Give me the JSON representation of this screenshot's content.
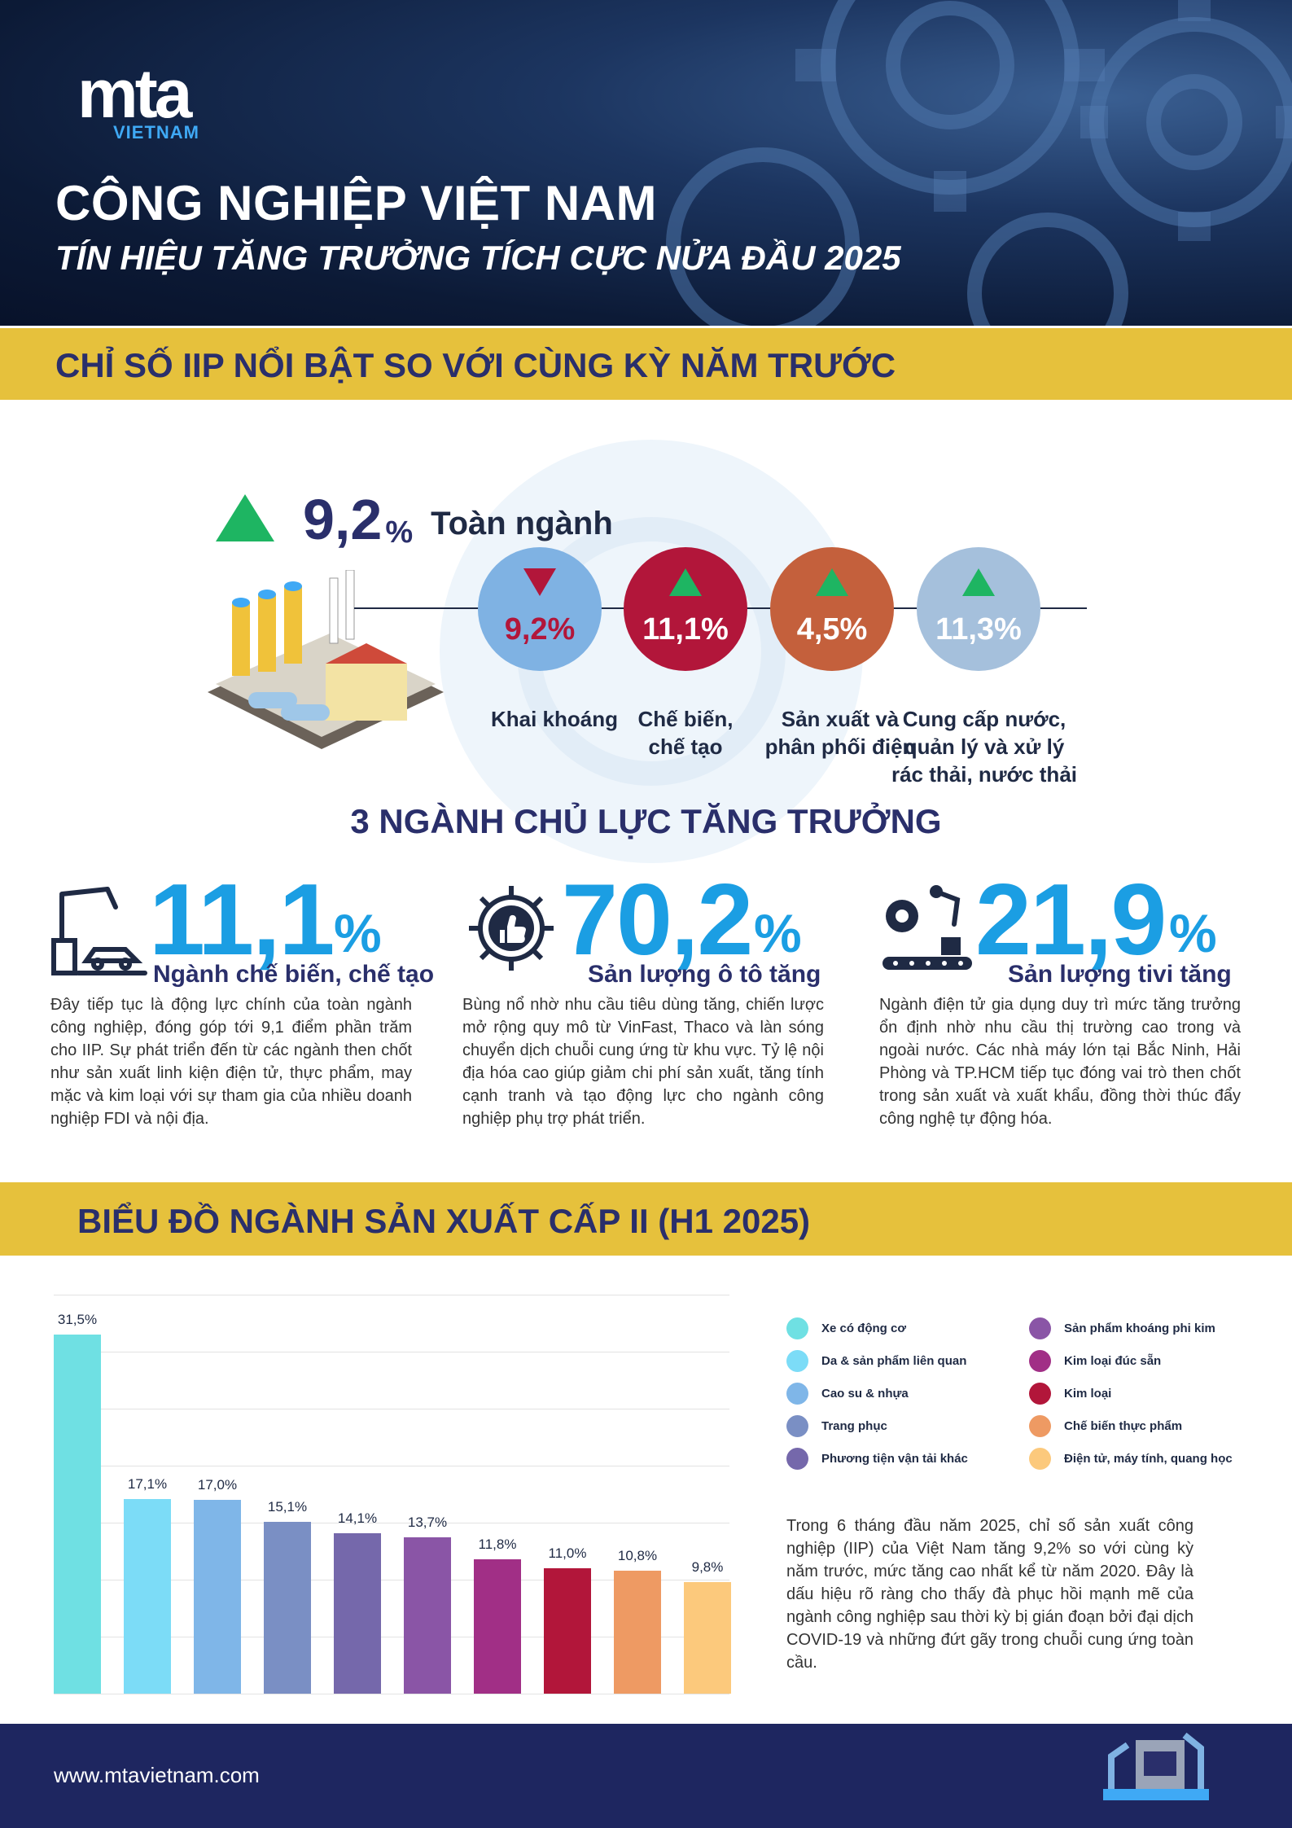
{
  "brand": {
    "logo_main": "mta",
    "logo_sub": "VIETNAM"
  },
  "header": {
    "title": "CÔNG NGHIỆP VIỆT NAM",
    "subtitle": "TÍN HIỆU TĂNG TRƯỞNG TÍCH CỰC NỬA ĐẦU 2025"
  },
  "section1": {
    "band": "CHỈ SỐ IIP NỔI BẬT  SO VỚI CÙNG KỲ NĂM TRƯỚC",
    "total": {
      "value": "9,2",
      "unit": "%",
      "label": "Toàn ngành",
      "trend": "up"
    },
    "sectors": [
      {
        "value": "9,2%",
        "label": "Khai khoáng",
        "trend": "down",
        "color": "#7fb2e3"
      },
      {
        "value": "11,1%",
        "label": "Chế biến,\nchế tạo",
        "trend": "up",
        "color": "#b2163a"
      },
      {
        "value": "4,5%",
        "label": "Sản xuất và\nphân phối điện",
        "trend": "up",
        "color": "#c4603c"
      },
      {
        "value": "11,3%",
        "label": "Cung cấp nước,\nquản lý và xử lý\nrác thải, nước thải",
        "trend": "up",
        "color": "#a5c0dc"
      }
    ]
  },
  "section2": {
    "heading": "3 NGÀNH CHỦ LỰC TĂNG TRƯỞNG",
    "items": [
      {
        "icon": "robot-arm-car-icon",
        "value": "11,1",
        "unit": "%",
        "caption": "Ngành chế biến, chế tạo",
        "text": "Đây tiếp tục là động lực chính của toàn ngành công nghiệp, đóng góp tới 9,1 điểm phần trăm cho IIP. Sự phát triển đến từ các ngành then chốt như sản xuất linh kiện điện tử, thực phẩm, may mặc và kim loại với sự tham gia của nhiều doanh nghiệp FDI và nội địa."
      },
      {
        "icon": "gear-thumbs-up-icon",
        "value": "70,2",
        "unit": "%",
        "caption": "Sản lượng ô tô tăng",
        "text": "Bùng nổ nhờ nhu cầu tiêu dùng tăng, chiến lược mở rộng quy mô từ VinFast, Thaco và làn sóng chuyển dịch chuỗi cung ứng từ khu vực. Tỷ lệ nội địa hóa cao giúp giảm chi phí sản xuất, tăng tính cạnh tranh và tạo động lực cho ngành công nghiệp phụ trợ phát triển."
      },
      {
        "icon": "conveyor-robot-icon",
        "value": "21,9",
        "unit": "%",
        "caption": "Sản lượng tivi tăng",
        "text": "Ngành điện tử gia dụng duy trì mức tăng trưởng ổn định nhờ nhu cầu thị trường cao trong và ngoài nước. Các nhà máy lớn tại Bắc Ninh, Hải Phòng và TP.HCM tiếp tục đóng vai trò then chốt trong sản xuất và xuất khẩu, đồng thời thúc đẩy công nghệ tự động hóa."
      }
    ]
  },
  "section3": {
    "band": "BIỂU ĐỒ NGÀNH SẢN XUẤT CẤP II (H1 2025)",
    "text": "Trong 6 tháng đầu năm 2025, chỉ số sản xuất công nghiệp (IIP) của Việt Nam tăng 9,2% so với cùng kỳ năm trước, mức tăng cao nhất kể từ năm 2020. Đây là dấu hiệu rõ ràng cho thấy đà phục hồi mạnh mẽ của ngành công nghiệp sau thời kỳ bị gián đoạn bởi đại dịch COVID-19 và những đứt gãy trong chuỗi cung ứng toàn cầu."
  },
  "chart_data": {
    "type": "bar",
    "categories": [
      "Xe có động cơ",
      "Da & sản phẩm liên quan",
      "Cao su & nhựa",
      "Trang phục",
      "Phương tiện vận tải khác",
      "Sản phẩm khoáng phi kim",
      "Kim loại đúc sẵn",
      "Kim loại",
      "Chế biến thực phẩm",
      "Điện tử, máy tính, quang học"
    ],
    "values": [
      31.5,
      17.1,
      17.0,
      15.1,
      14.1,
      13.7,
      11.8,
      11.0,
      10.8,
      9.8
    ],
    "value_labels": [
      "31,5%",
      "17,1%",
      "17,0%",
      "15,1%",
      "14,1%",
      "13,7%",
      "11,8%",
      "11,0%",
      "10,8%",
      "9,8%"
    ],
    "colors": [
      "#6fe0e3",
      "#7cdcf7",
      "#7fb6e8",
      "#7a8fc4",
      "#7568ab",
      "#8a55a6",
      "#a12f86",
      "#b2163a",
      "#ee9a63",
      "#fcc97c"
    ],
    "legend_columns": 2,
    "ylim": [
      0,
      35
    ],
    "grid": true
  },
  "footer": {
    "url": "www.mtavietnam.com"
  }
}
